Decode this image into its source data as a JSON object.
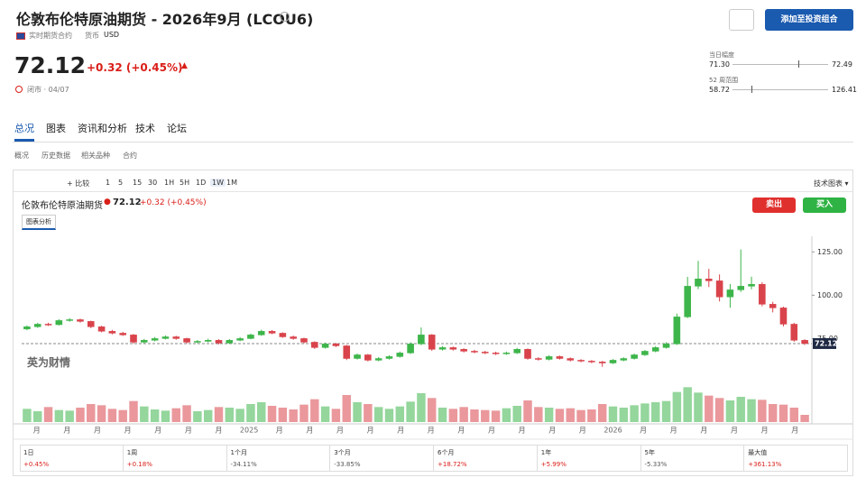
{
  "header": {
    "title": "伦敦布伦特原油期货 - 2026年9月 (LCOU6)",
    "contract": "实时期货合约",
    "currency_label": "货币",
    "currency": "USD",
    "price": "72.12",
    "change": "+0.32 (+0.45%)",
    "status": "闭市 · 04/07",
    "add_button": "添加至投资组合"
  },
  "ranges": [
    {
      "label": "当日幅度",
      "low": {
        "value": 71.3,
        "label": "71.30"
      },
      "high": 72.49
    },
    {
      "label": "52 周范围",
      "low": 58.72,
      "high": 126.41
    }
  ],
  "tabs": [
    "总况",
    "图表",
    "资讯和分析",
    "技术",
    "论坛"
  ],
  "subtabs": [
    "概况",
    "历史数据",
    "相关品种",
    "合约"
  ],
  "toolbar": {
    "compare": "比较",
    "intervals": [
      "1",
      "5",
      "15",
      "30",
      "1H",
      "5H",
      "1D",
      "1W",
      "1M"
    ],
    "tech_chart": "技术图表"
  },
  "chart_data": {
    "type": "candlestick",
    "title": "伦敦布伦特原油期货",
    "last_price": "72.12",
    "change": "+0.32 (+0.45%)",
    "sell": "卖出",
    "buy": "买入",
    "analysis": "图表分析",
    "watermark": "英为财情",
    "up_color": "#3db54a",
    "down_color": "#d9434b",
    "x_labels": [
      "月",
      "月",
      "月",
      "月",
      "月",
      "月",
      "月",
      "2025",
      "月",
      "月",
      "月",
      "月",
      "月",
      "月",
      "月",
      "月",
      "月",
      "月",
      "月",
      "2026",
      "月",
      "月",
      "月",
      "月",
      "月",
      "月"
    ],
    "open": [
      80.5,
      81.8,
      83.3,
      83.0,
      85.4,
      85.9,
      84.9,
      81.8,
      79.2,
      78.1,
      77.1,
      72.9,
      74.0,
      75.0,
      76.0,
      75.0,
      72.9,
      73.4,
      74.0,
      72.4,
      74.0,
      75.0,
      77.1,
      79.2,
      78.1,
      76.0,
      75.0,
      72.9,
      69.8,
      71.9,
      70.8,
      63.5,
      65.6,
      62.5,
      63.5,
      64.6,
      66.7,
      71.9,
      77.1,
      68.8,
      69.8,
      68.8,
      67.7,
      67.2,
      66.7,
      66.2,
      66.7,
      68.8,
      63.5,
      63.0,
      64.6,
      63.5,
      62.5,
      62.0,
      61.5,
      60.9,
      62.5,
      63.5,
      65.6,
      67.7,
      69.8,
      71.9,
      87.5,
      105.2,
      109.4,
      108.3,
      99.0,
      103.1,
      105.2,
      106.3,
      94.8,
      92.7,
      83.3,
      74.0
    ],
    "high": [
      82.6,
      84.0,
      84.1,
      86.2,
      86.8,
      86.5,
      85.3,
      82.4,
      80.0,
      78.9,
      77.6,
      74.8,
      75.9,
      76.8,
      76.6,
      75.5,
      74.2,
      74.9,
      74.6,
      74.7,
      75.8,
      77.9,
      80.1,
      79.9,
      78.6,
      76.7,
      75.5,
      73.4,
      72.6,
      72.5,
      71.3,
      66.4,
      66.1,
      64.3,
      65.3,
      67.5,
      72.8,
      81.4,
      77.6,
      70.6,
      70.4,
      69.4,
      68.5,
      67.9,
      67.4,
      67.5,
      69.6,
      69.3,
      64.2,
      65.4,
      65.2,
      64.1,
      63.1,
      62.6,
      62.1,
      63.2,
      64.2,
      66.3,
      68.4,
      70.6,
      72.9,
      89.4,
      110.6,
      119.8,
      115.2,
      112.0,
      106.5,
      126.41,
      110.7,
      107.5,
      96.2,
      93.4,
      84.1,
      74.6
    ],
    "low": [
      79.8,
      81.2,
      82.3,
      82.6,
      84.7,
      84.2,
      81.0,
      78.6,
      77.4,
      76.5,
      72.1,
      72.3,
      73.4,
      74.5,
      74.3,
      72.2,
      72.3,
      72.8,
      71.7,
      71.9,
      73.5,
      74.6,
      76.6,
      77.5,
      75.4,
      74.3,
      72.2,
      69.0,
      69.2,
      70.1,
      62.6,
      62.9,
      61.8,
      61.9,
      62.9,
      64.0,
      66.1,
      71.2,
      67.9,
      68.1,
      68.1,
      67.0,
      66.5,
      66.0,
      65.5,
      65.6,
      66.1,
      62.8,
      62.3,
      62.4,
      62.9,
      61.8,
      61.3,
      60.8,
      58.72,
      60.3,
      61.9,
      62.9,
      65.0,
      67.1,
      69.2,
      71.3,
      86.8,
      103.5,
      104.7,
      96.4,
      92.8,
      101.9,
      103.4,
      93.6,
      90.1,
      82.0,
      73.2,
      71.3
    ],
    "close": [
      81.8,
      83.3,
      83.0,
      85.4,
      85.9,
      84.9,
      81.8,
      79.2,
      78.1,
      77.1,
      72.9,
      74.0,
      75.0,
      76.0,
      75.0,
      72.9,
      73.4,
      74.0,
      72.4,
      74.0,
      75.0,
      77.1,
      79.2,
      78.1,
      76.0,
      75.0,
      72.9,
      69.8,
      71.9,
      70.8,
      63.5,
      65.6,
      62.5,
      63.5,
      64.6,
      66.7,
      71.9,
      77.1,
      68.8,
      69.8,
      68.8,
      67.7,
      67.2,
      66.7,
      66.2,
      66.7,
      68.8,
      63.5,
      63.0,
      64.6,
      63.5,
      62.5,
      62.0,
      61.5,
      60.9,
      62.5,
      63.5,
      65.6,
      67.7,
      69.8,
      71.9,
      87.5,
      105.2,
      109.4,
      108.3,
      99.0,
      103.1,
      105.2,
      106.3,
      94.8,
      92.7,
      83.3,
      74.0,
      72.12
    ],
    "volume": [
      22,
      18,
      25,
      20,
      19,
      24,
      30,
      28,
      22,
      20,
      35,
      26,
      21,
      19,
      23,
      28,
      18,
      20,
      25,
      24,
      22,
      30,
      33,
      27,
      24,
      21,
      29,
      38,
      26,
      22,
      45,
      33,
      30,
      25,
      22,
      26,
      34,
      48,
      40,
      24,
      22,
      25,
      21,
      20,
      19,
      23,
      27,
      36,
      25,
      24,
      22,
      23,
      20,
      21,
      30,
      26,
      24,
      28,
      31,
      33,
      35,
      50,
      58,
      49,
      44,
      40,
      36,
      42,
      38,
      37,
      30,
      29,
      24,
      12
    ],
    "volume_lim": [
      0,
      60
    ],
    "ylim": [
      57,
      134
    ],
    "yticks": [
      {
        "value": 75,
        "label": "75.00"
      },
      {
        "value": 100,
        "label": "100.00"
      },
      {
        "value": 125,
        "label": "125.00"
      }
    ],
    "last_value": 72.12
  },
  "performance": [
    {
      "period": "1日",
      "change": "+0.45%"
    },
    {
      "period": "1周",
      "change": "+0.18%"
    },
    {
      "period": "1个月",
      "change": "-34.11%"
    },
    {
      "period": "3个月",
      "change": "-33.85%"
    },
    {
      "period": "6个月",
      "change": "+18.72%"
    },
    {
      "period": "1年",
      "change": "+5.99%"
    },
    {
      "period": "5年",
      "change": "-5.33%"
    },
    {
      "period": "最大值",
      "change": "+361.13%"
    }
  ]
}
